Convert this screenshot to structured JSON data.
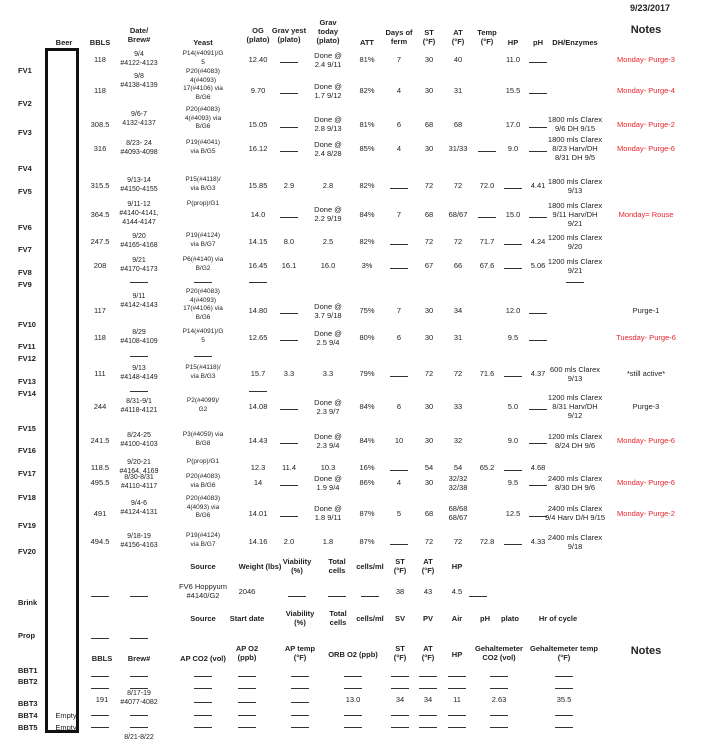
{
  "date": "9/23/2017",
  "headers": {
    "beer": "Beer",
    "bbls": "BBLS",
    "date_brew": "Date/\nBrew#",
    "yeast": "Yeast",
    "og": "OG\n(plato)",
    "grav_yest": "Grav yest\n(plato)",
    "grav_today": "Grav\ntoday\n(plato)",
    "att": "ATT",
    "days": "Days of\nferm",
    "st": "ST\n(°F)",
    "at": "AT\n(°F)",
    "temp": "Temp\n(°F)",
    "hp": "HP",
    "ph": "pH",
    "dh": "DH/Enzymes",
    "notes": "Notes"
  },
  "fv_labels": [
    "FV1",
    "FV2",
    "FV3",
    "FV4",
    "FV5",
    "FV6",
    "FV7",
    "FV8",
    "FV9",
    "FV10",
    "FV11",
    "FV12",
    "FV13",
    "FV14",
    "FV15",
    "FV16",
    "FV17",
    "FV18",
    "FV19",
    "FV20"
  ],
  "rows": [
    {
      "bbls": "118",
      "brew": "9/4\n#4122-4123",
      "yeast": "P14(#4091)/G\n5",
      "og": "12.40",
      "gy": "____",
      "gt": "Done @\n2.4 9/11",
      "att": "81%",
      "days": "7",
      "st": "30",
      "at": "40",
      "temp": "",
      "hp": "11.0",
      "ph": "____",
      "dh": "",
      "note": "Monday- Purge-3",
      "red": true
    },
    {
      "bbls": "118",
      "brew": "9/8\n#4138-4139",
      "yeast": "P20(#4083)\n4(#4093)\n17(#4106) via\nB/G6",
      "og": "9.70",
      "gy": "____",
      "gt": "Done @\n1.7 9/12",
      "att": "82%",
      "days": "4",
      "st": "30",
      "at": "31",
      "temp": "",
      "hp": "15.5",
      "ph": "____",
      "dh": "",
      "note": "Monday- Purge-4",
      "red": true
    },
    {
      "bbls": "308.5",
      "brew": "9/6-7\n4132-4137",
      "yeast": "P20(#4083)\n4(#4093) via\nB/G6",
      "og": "15.05",
      "gy": "____",
      "gt": "Done @\n2.8 9/13",
      "att": "81%",
      "days": "6",
      "st": "68",
      "at": "68",
      "temp": "",
      "hp": "17.0",
      "ph": "____",
      "dh": "1800 mls Clarex\n9/6 DH 9/15",
      "note": "Monday- Purge-2",
      "red": true
    },
    {
      "bbls": "316",
      "brew": "8/23- 24\n#4093-4098",
      "yeast": "P19(#4041)\nvia B/G5",
      "og": "16.12",
      "gy": "____",
      "gt": "Done @\n2.4 8/28",
      "att": "85%",
      "days": "4",
      "st": "30",
      "at": "31/33",
      "temp": "____",
      "hp": "9.0",
      "ph": "____",
      "dh": "1800 mls Clarex\n8/23 Harv/DH\n8/31 DH 9/5",
      "note": "Monday- Purge-6",
      "red": true
    },
    {
      "bbls": "315.5",
      "brew": "9/13-14\n#4150-4155",
      "yeast": "P15(#4118)/\nvia B/G3",
      "og": "15.85",
      "gy": "2.9",
      "gt": "2.8",
      "att": "82%",
      "days": "____",
      "st": "72",
      "at": "72",
      "temp": "72.0",
      "hp": "____",
      "ph": "4.41",
      "dh": "1800 mls Clarex\n9/13",
      "note": "",
      "red": false
    },
    {
      "bbls": "364.5",
      "brew": "9/11-12\n#4140-4141,\n4144-4147",
      "yeast": "P(prop)/G1",
      "og": "14.0",
      "gy": "____",
      "gt": "Done @\n2.2 9/19",
      "att": "84%",
      "days": "7",
      "st": "68",
      "at": "68/67",
      "temp": "____",
      "hp": "15.0",
      "ph": "____",
      "dh": "1800 mls Clarex\n9/11 Harv/DH\n9/21",
      "note": "Monday= Rouse",
      "red": true
    },
    {
      "bbls": "247.5",
      "brew": "9/20\n#4165-4168",
      "yeast": "P19(#4124)\nvia B/G7",
      "og": "14.15",
      "gy": "8.0",
      "gt": "2.5",
      "att": "82%",
      "days": "____",
      "st": "72",
      "at": "72",
      "temp": "71.7",
      "hp": "____",
      "ph": "4.24",
      "dh": "1200 mls Clarex\n9/20",
      "note": "",
      "red": false
    },
    {
      "bbls": "208",
      "brew": "9/21\n#4170-4173",
      "yeast": "P6(#4140) via\nB/G2",
      "og": "16.45",
      "gy": "16.1",
      "gt": "16.0",
      "att": "3%",
      "days": "____",
      "st": "67",
      "at": "66",
      "temp": "67.6",
      "hp": "____",
      "ph": "5.06",
      "dh": "1200 mls Clarex\n9/21",
      "note": "",
      "red": false
    },
    {
      "bbls": "117",
      "brew": "9/11\n#4142-4143",
      "yeast": "P20(#4083)\n4(#4093)\n17(#4106) via\nB/G6",
      "og": "14.80",
      "gy": "____",
      "gt": "Done @\n3.7 9/18",
      "att": "75%",
      "days": "7",
      "st": "30",
      "at": "34",
      "temp": "",
      "hp": "12.0",
      "ph": "____",
      "dh": "",
      "note": "Purge-1",
      "red": false
    },
    {
      "bbls": "118",
      "brew": "8/29\n#4108-4109",
      "yeast": "P14(#4091)/G\n5",
      "og": "12.65",
      "gy": "____",
      "gt": "Done @\n2.5 9/4",
      "att": "80%",
      "days": "6",
      "st": "30",
      "at": "31",
      "temp": "",
      "hp": "9.5",
      "ph": "____",
      "dh": "",
      "note": "Tuesday- Purge-6",
      "red": true
    },
    {
      "bbls": "111",
      "brew": "9/13\n#4148-4149",
      "yeast": "P15(#4118)/\nvia B/G3",
      "og": "15.7",
      "gy": "3.3",
      "gt": "3.3",
      "att": "79%",
      "days": "____",
      "st": "72",
      "at": "72",
      "temp": "71.6",
      "hp": "____",
      "ph": "4.37",
      "dh": "600 mls Clarex\n9/13",
      "note": "*still active*",
      "red": false
    },
    {
      "bbls": "244",
      "brew": "8/31-9/1\n#4118-4121",
      "yeast": "P2(#4099)/\nG2",
      "og": "14.08",
      "gy": "____",
      "gt": "Done @\n2.3 9/7",
      "att": "84%",
      "days": "6",
      "st": "30",
      "at": "33",
      "temp": "",
      "hp": "5.0",
      "ph": "____",
      "dh": "1200 mls Clarex\n8/31 Harv/DH\n9/12",
      "note": "Purge-3",
      "red": false
    },
    {
      "bbls": "241.5",
      "brew": "8/24-25\n#4100-4103",
      "yeast": "P3(#4059) via\nB/G8",
      "og": "14.43",
      "gy": "____",
      "gt": "Done @\n2.3 9/4",
      "att": "84%",
      "days": "10",
      "st": "30",
      "at": "32",
      "temp": "",
      "hp": "9.0",
      "ph": "____",
      "dh": "1200 mls Clarex\n8/24 DH 9/6",
      "note": "Monday- Purge-6",
      "red": true
    },
    {
      "bbls": "118.5",
      "brew": "9/20-21\n#4164, 4169",
      "yeast": "P(prop)/G1",
      "og": "12.3",
      "gy": "11.4",
      "gt": "10.3",
      "att": "16%",
      "days": "____",
      "st": "54",
      "at": "54",
      "temp": "65.2",
      "hp": "____",
      "ph": "4.68",
      "dh": "",
      "note": "",
      "red": false
    },
    {
      "bbls": "495.5",
      "brew": "8/30-8/31\n#4110-4117",
      "yeast": "P20(#4083)\nvia B/G6",
      "og": "14",
      "gy": "____",
      "gt": "Done @\n1.9 9/4",
      "att": "86%",
      "days": "4",
      "st": "30",
      "at": "32/32\n32/38",
      "temp": "",
      "hp": "9.5",
      "ph": "____",
      "dh": "2400 mls Clarex\n8/30 DH 9/6",
      "note": "Monday- Purge-6",
      "red": true
    },
    {
      "bbls": "491",
      "brew": "9/4-6\n#4124-4131",
      "yeast": "P20(#4083)\n4(4093) via\nB/G6",
      "og": "14.01",
      "gy": "____",
      "gt": "Done @\n1.8 9/11",
      "att": "87%",
      "days": "5",
      "st": "68",
      "at": "68/68\n68/67",
      "temp": "",
      "hp": "12.5",
      "ph": "____",
      "dh": "2400 mls Clarex\n9/4 Harv D/H 9/15",
      "note": "Monday- Purge-2",
      "red": true
    },
    {
      "bbls": "494.5",
      "brew": "9/18-19\n#4156-4163",
      "yeast": "P19(#4124)\nvia B/G7",
      "og": "14.16",
      "gy": "2.0",
      "gt": "1.8",
      "att": "87%",
      "days": "____",
      "st": "72",
      "at": "72",
      "temp": "72.8",
      "hp": "____",
      "ph": "4.33",
      "dh": "2400 mls Clarex\n9/18",
      "note": "",
      "red": false
    }
  ],
  "brink": {
    "label": "Brink",
    "h_source": "Source",
    "h_weight": "Weight (lbs)",
    "h_viab": "Viability\n(%)",
    "h_total": "Total\ncells",
    "h_cellsml": "cells/ml",
    "h_st": "ST\n(°F)",
    "h_at": "AT\n(°F)",
    "h_hp": "HP",
    "source": "FV6 Hoppyum\n#4140/G2",
    "weight": "2046",
    "st": "38",
    "at": "43",
    "hp": "4.5"
  },
  "prop": {
    "label": "Prop",
    "h_source": "Source",
    "h_start": "Start date",
    "h_viab": "Viability\n(%)",
    "h_total": "Total\ncells",
    "h_cellsml": "cells/ml",
    "h_sv": "SV",
    "h_pv": "PV",
    "h_air": "Air",
    "h_ph": "pH",
    "h_plato": "plato",
    "h_hr": "Hr of cycle"
  },
  "bbt": {
    "h_bbls": "BBLS",
    "h_brew": "Brew#",
    "h_apco2": "AP CO2 (vol)",
    "h_apo2": "AP O2\n(ppb)",
    "h_aptemp": "AP temp\n(°F)",
    "h_orb": "ORB O2 (ppb)",
    "h_st": "ST\n(°F)",
    "h_at": "AT\n(°F)",
    "h_hp": "HP",
    "h_gc": "Gehaltemeter\nCO2 (vol)",
    "h_gt": "Gehaltemeter temp\n(°F)",
    "notes": "Notes",
    "labels": [
      "BBT1",
      "BBT2",
      "BBT3",
      "BBT4",
      "BBT5"
    ],
    "empty": "Empty",
    "bbt3": {
      "bbls": "191",
      "brew": "8/17-19\n#4077-4082",
      "orb": "13.0",
      "st": "34",
      "at": "34",
      "hp": "11",
      "gc": "2.63",
      "gt": "35.5"
    },
    "partial_brew": "8/21-8/22"
  }
}
